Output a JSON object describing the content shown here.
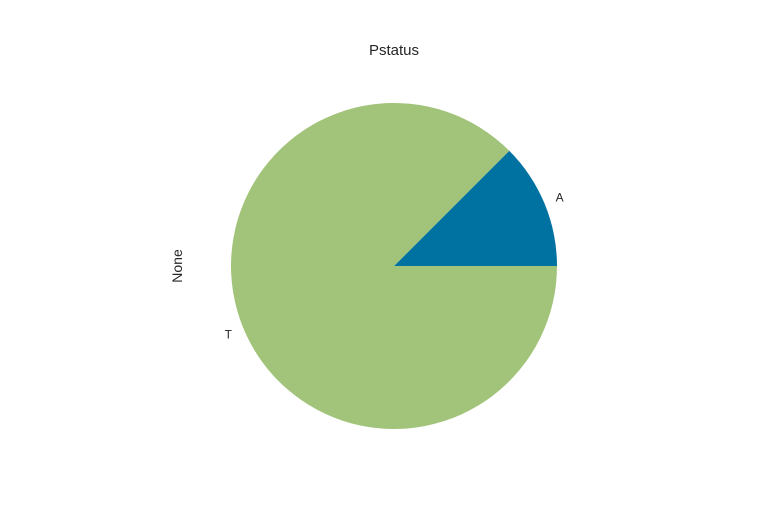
{
  "chart_data": {
    "type": "pie",
    "title": "Pstatus",
    "ylabel": "None",
    "categories": [
      "A",
      "T"
    ],
    "values": [
      12.5,
      87.5
    ],
    "colors": [
      "#0072a2",
      "#a1c47a"
    ],
    "start_angle_deg": 0,
    "direction": "counterclockwise"
  }
}
